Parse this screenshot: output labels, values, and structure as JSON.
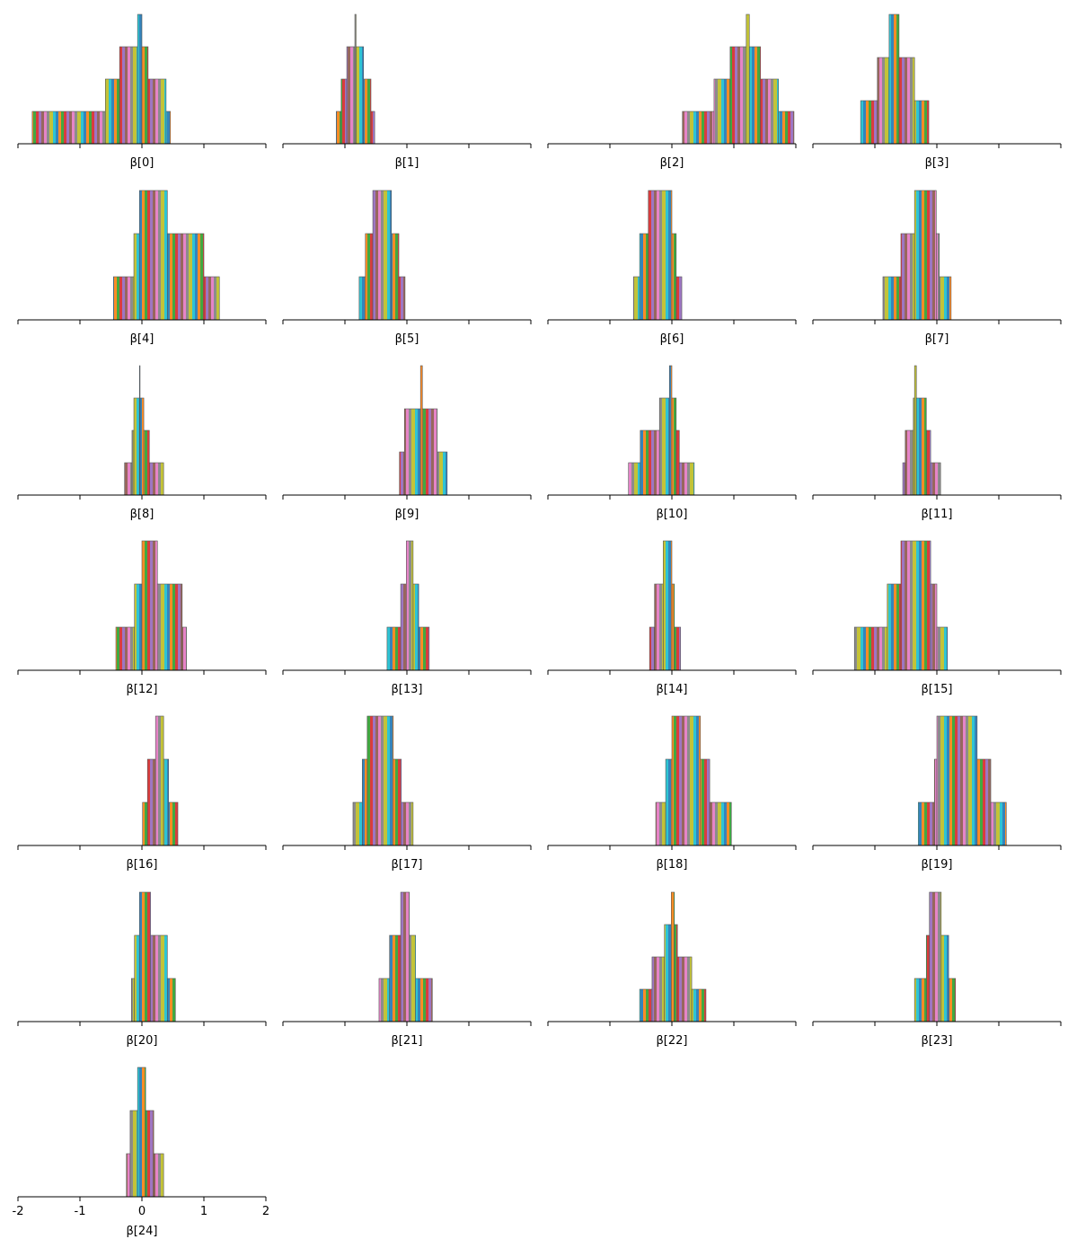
{
  "chart_data": [
    {
      "type": "histogram",
      "xlabel": "β[0]",
      "bins": [
        -1.77,
        -0.59,
        -0.36,
        -0.07,
        0.0,
        0.1,
        0.39,
        0.46
      ],
      "counts": [
        1,
        2,
        3,
        4,
        3,
        2,
        1
      ],
      "ylim": [
        0,
        4
      ],
      "xlim": [
        -2,
        2
      ],
      "xticks": [
        -2,
        -1,
        0,
        1,
        2
      ]
    },
    {
      "type": "histogram",
      "xlabel": "β[1]",
      "bins": [
        -1.14,
        -1.06,
        -0.97,
        -0.84,
        -0.82,
        -0.7,
        -0.58,
        -0.52
      ],
      "counts": [
        1,
        2,
        3,
        4,
        3,
        2,
        1
      ],
      "ylim": [
        0,
        4
      ],
      "xlim": [
        -2,
        2
      ],
      "xticks": [
        -2,
        -1,
        0,
        1,
        2
      ]
    },
    {
      "type": "histogram",
      "xlabel": "β[2]",
      "bins": [
        0.17,
        0.68,
        0.94,
        1.2,
        1.25,
        1.43,
        1.72,
        1.97
      ],
      "counts": [
        1,
        2,
        3,
        4,
        3,
        2,
        1
      ],
      "ylim": [
        0,
        4
      ],
      "xlim": [
        -2,
        2
      ],
      "xticks": [
        -2,
        -1,
        0,
        1,
        2
      ]
    },
    {
      "type": "histogram",
      "xlabel": "β[3]",
      "bins": [
        -1.23,
        -0.96,
        -0.77,
        -0.61,
        -0.36,
        -0.13
      ],
      "counts": [
        1,
        2,
        3,
        2,
        1
      ],
      "ylim": [
        0,
        3
      ],
      "xlim": [
        -2,
        2
      ],
      "xticks": [
        -2,
        -1,
        0,
        1,
        2
      ]
    },
    {
      "type": "histogram",
      "xlabel": "β[4]",
      "bins": [
        -0.46,
        -0.13,
        -0.04,
        0.41,
        1.0,
        1.25
      ],
      "counts": [
        1,
        2,
        3,
        2,
        1
      ],
      "ylim": [
        0,
        3
      ],
      "xlim": [
        -2,
        2
      ],
      "xticks": [
        -2,
        -1,
        0,
        1,
        2
      ]
    },
    {
      "type": "histogram",
      "xlabel": "β[5]",
      "bins": [
        -0.77,
        -0.67,
        -0.55,
        -0.25,
        -0.13,
        -0.03
      ],
      "counts": [
        1,
        2,
        3,
        2,
        1
      ],
      "ylim": [
        0,
        3
      ],
      "xlim": [
        -2,
        2
      ],
      "xticks": [
        -2,
        -1,
        0,
        1,
        2
      ]
    },
    {
      "type": "histogram",
      "xlabel": "β[6]",
      "bins": [
        -0.62,
        -0.52,
        -0.38,
        0.0,
        0.07,
        0.16
      ],
      "counts": [
        1,
        2,
        3,
        2,
        1
      ],
      "ylim": [
        0,
        3
      ],
      "xlim": [
        -2,
        2
      ],
      "xticks": [
        -2,
        -1,
        0,
        1,
        2
      ]
    },
    {
      "type": "histogram",
      "xlabel": "β[7]",
      "bins": [
        -0.87,
        -0.58,
        -0.36,
        -0.01,
        0.04,
        0.23
      ],
      "counts": [
        1,
        2,
        3,
        2,
        1
      ],
      "ylim": [
        0,
        3
      ],
      "xlim": [
        -2,
        2
      ],
      "xticks": [
        -2,
        -1,
        0,
        1,
        2
      ]
    },
    {
      "type": "histogram",
      "xlabel": "β[8]",
      "bins": [
        -0.28,
        -0.16,
        -0.13,
        -0.04,
        -0.03,
        0.03,
        0.12,
        0.35
      ],
      "counts": [
        1,
        2,
        3,
        4,
        3,
        2,
        1
      ],
      "ylim": [
        0,
        4
      ],
      "xlim": [
        -2,
        2
      ],
      "xticks": [
        -2,
        -1,
        0,
        1,
        2
      ]
    },
    {
      "type": "histogram",
      "xlabel": "β[9]",
      "bins": [
        -0.12,
        -0.04,
        0.22,
        0.25,
        0.49,
        0.65
      ],
      "counts": [
        1,
        2,
        3,
        2,
        1
      ],
      "ylim": [
        0,
        3
      ],
      "xlim": [
        -2,
        2
      ],
      "xticks": [
        -2,
        -1,
        0,
        1,
        2
      ]
    },
    {
      "type": "histogram",
      "xlabel": "β[10]",
      "bins": [
        -0.7,
        -0.51,
        -0.2,
        -0.04,
        0.0,
        0.07,
        0.12,
        0.36
      ],
      "counts": [
        1,
        2,
        3,
        4,
        3,
        2,
        1
      ],
      "ylim": [
        0,
        4
      ],
      "xlim": [
        -2,
        2
      ],
      "xticks": [
        -2,
        -1,
        0,
        1,
        2
      ]
    },
    {
      "type": "histogram",
      "xlabel": "β[11]",
      "bins": [
        -0.55,
        -0.51,
        -0.38,
        -0.36,
        -0.33,
        -0.17,
        -0.1,
        0.06
      ],
      "counts": [
        1,
        2,
        3,
        4,
        3,
        2,
        1
      ],
      "ylim": [
        0,
        4
      ],
      "xlim": [
        -2,
        2
      ],
      "xticks": [
        -2,
        -1,
        0,
        1,
        2
      ]
    },
    {
      "type": "histogram",
      "xlabel": "β[12]",
      "bins": [
        -0.42,
        -0.12,
        0.0,
        0.25,
        0.65,
        0.72
      ],
      "counts": [
        1,
        2,
        3,
        2,
        1
      ],
      "ylim": [
        0,
        3
      ],
      "xlim": [
        -2,
        2
      ],
      "xticks": [
        -2,
        -1,
        0,
        1,
        2
      ]
    },
    {
      "type": "histogram",
      "xlabel": "β[13]",
      "bins": [
        -0.32,
        -0.1,
        -0.01,
        0.1,
        0.19,
        0.36
      ],
      "counts": [
        1,
        2,
        3,
        2,
        1
      ],
      "ylim": [
        0,
        3
      ],
      "xlim": [
        -2,
        2
      ],
      "xticks": [
        -2,
        -1,
        0,
        1,
        2
      ]
    },
    {
      "type": "histogram",
      "xlabel": "β[14]",
      "bins": [
        -0.36,
        -0.28,
        -0.14,
        0.0,
        0.04,
        0.14
      ],
      "counts": [
        1,
        2,
        3,
        2,
        1
      ],
      "ylim": [
        0,
        3
      ],
      "xlim": [
        -2,
        2
      ],
      "xticks": [
        -2,
        -1,
        0,
        1,
        2
      ]
    },
    {
      "type": "histogram",
      "xlabel": "β[15]",
      "bins": [
        -1.33,
        -0.8,
        -0.58,
        -0.1,
        0.0,
        0.17
      ],
      "counts": [
        1,
        2,
        3,
        2,
        1
      ],
      "ylim": [
        0,
        3
      ],
      "xlim": [
        -2,
        2
      ],
      "xticks": [
        -2,
        -1,
        0,
        1,
        2
      ]
    },
    {
      "type": "histogram",
      "xlabel": "β[16]",
      "bins": [
        0.01,
        0.09,
        0.22,
        0.35,
        0.43,
        0.58
      ],
      "counts": [
        1,
        2,
        3,
        2,
        1
      ],
      "ylim": [
        0,
        3
      ],
      "xlim": [
        -2,
        2
      ],
      "xticks": [
        -2,
        -1,
        0,
        1,
        2
      ]
    },
    {
      "type": "histogram",
      "xlabel": "β[17]",
      "bins": [
        -0.87,
        -0.72,
        -0.64,
        -0.22,
        -0.09,
        0.1
      ],
      "counts": [
        1,
        2,
        3,
        2,
        1
      ],
      "ylim": [
        0,
        3
      ],
      "xlim": [
        -2,
        2
      ],
      "xticks": [
        -2,
        -1,
        0,
        1,
        2
      ]
    },
    {
      "type": "histogram",
      "xlabel": "β[18]",
      "bins": [
        -0.26,
        -0.1,
        0.0,
        0.46,
        0.61,
        0.96
      ],
      "counts": [
        1,
        2,
        3,
        2,
        1
      ],
      "ylim": [
        0,
        3
      ],
      "xlim": [
        -2,
        2
      ],
      "xticks": [
        -2,
        -1,
        0,
        1,
        2
      ]
    },
    {
      "type": "histogram",
      "xlabel": "β[19]",
      "bins": [
        -0.3,
        -0.04,
        0.0,
        0.65,
        0.87,
        1.12
      ],
      "counts": [
        1,
        2,
        3,
        2,
        1
      ],
      "ylim": [
        0,
        3
      ],
      "xlim": [
        -2,
        2
      ],
      "xticks": [
        -2,
        -1,
        0,
        1,
        2
      ]
    },
    {
      "type": "histogram",
      "xlabel": "β[20]",
      "bins": [
        -0.17,
        -0.12,
        -0.04,
        0.14,
        0.41,
        0.54
      ],
      "counts": [
        1,
        2,
        3,
        2,
        1
      ],
      "ylim": [
        0,
        3
      ],
      "xlim": [
        -2,
        2
      ],
      "xticks": [
        -2,
        -1,
        0,
        1,
        2
      ]
    },
    {
      "type": "histogram",
      "xlabel": "β[21]",
      "bins": [
        -0.45,
        -0.28,
        -0.1,
        0.04,
        0.14,
        0.41
      ],
      "counts": [
        1,
        2,
        3,
        2,
        1
      ],
      "ylim": [
        0,
        3
      ],
      "xlim": [
        -2,
        2
      ],
      "xticks": [
        -2,
        -1,
        0,
        1,
        2
      ]
    },
    {
      "type": "histogram",
      "xlabel": "β[22]",
      "bins": [
        -0.52,
        -0.32,
        -0.12,
        -0.01,
        0.04,
        0.09,
        0.32,
        0.55
      ],
      "counts": [
        1,
        2,
        3,
        4,
        3,
        2,
        1
      ],
      "ylim": [
        0,
        4
      ],
      "xlim": [
        -2,
        2
      ],
      "xticks": [
        -2,
        -1,
        0,
        1,
        2
      ]
    },
    {
      "type": "histogram",
      "xlabel": "β[23]",
      "bins": [
        -0.36,
        -0.17,
        -0.12,
        0.07,
        0.19,
        0.3
      ],
      "counts": [
        1,
        2,
        3,
        2,
        1
      ],
      "ylim": [
        0,
        3
      ],
      "xlim": [
        -2,
        2
      ],
      "xticks": [
        -2,
        -1,
        0,
        1,
        2
      ]
    },
    {
      "type": "histogram",
      "xlabel": "β[24]",
      "bins": [
        -0.25,
        -0.19,
        -0.07,
        0.06,
        0.19,
        0.35
      ],
      "counts": [
        1,
        2,
        3,
        2,
        1
      ],
      "ylim": [
        0,
        3
      ],
      "xlim": [
        -2,
        2
      ],
      "xticks": [
        -2,
        -1,
        0,
        1,
        2
      ]
    }
  ]
}
